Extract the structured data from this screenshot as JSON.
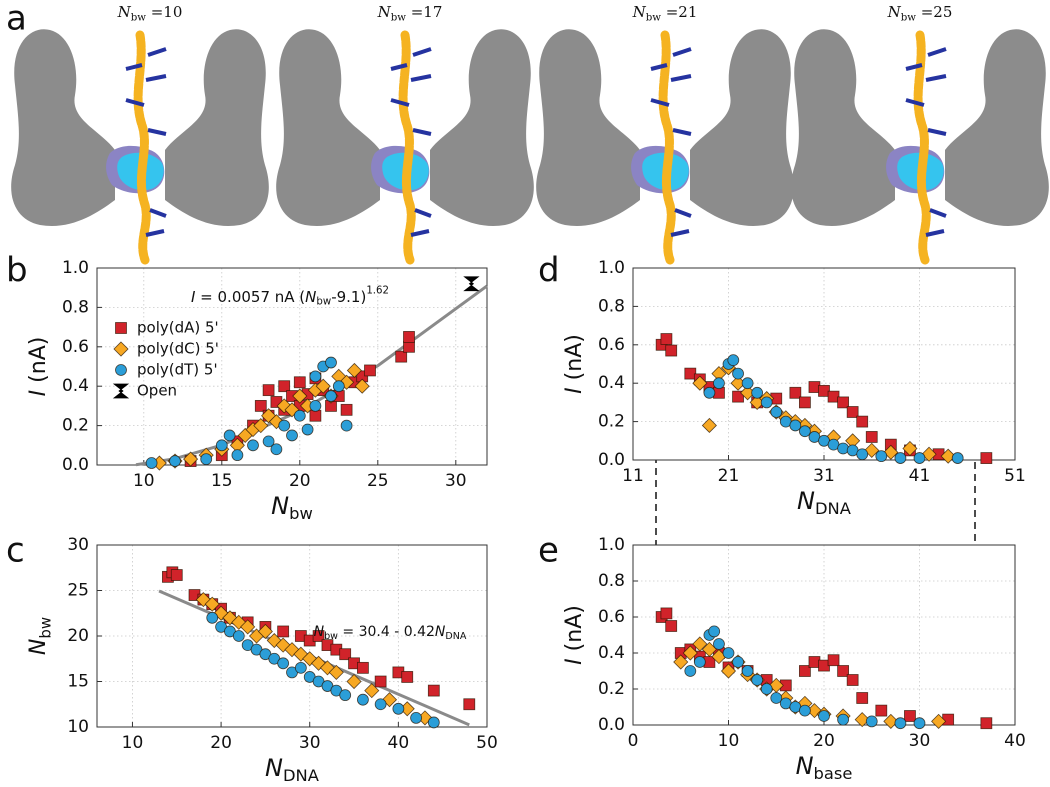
{
  "panel_a": {
    "label": "a",
    "titles": [
      [
        {
          "text": "N",
          "role": "italic"
        },
        {
          "text": "bw",
          "role": "sub"
        },
        {
          "text": " =10",
          "role": "normal"
        }
      ],
      [
        {
          "text": "N",
          "role": "italic"
        },
        {
          "text": "bw",
          "role": "sub"
        },
        {
          "text": " =17",
          "role": "normal"
        }
      ],
      [
        {
          "text": "N",
          "role": "italic"
        },
        {
          "text": "bw",
          "role": "sub"
        },
        {
          "text": " =21",
          "role": "normal"
        }
      ],
      [
        {
          "text": "N",
          "role": "italic"
        },
        {
          "text": "bw",
          "role": "sub"
        },
        {
          "text": " =25",
          "role": "normal"
        }
      ]
    ]
  },
  "chart_data": [
    {
      "type": "scatter",
      "panel_label": "b",
      "grid": true,
      "legend": "upper left",
      "xlabel": [
        {
          "text": "N",
          "role": "italic"
        },
        {
          "text": "bw",
          "role": "sub"
        }
      ],
      "ylabel": [
        {
          "text": "I",
          "role": "italic"
        },
        {
          "text": " (nA)",
          "role": "normal"
        }
      ],
      "xlim": [
        7,
        32
      ],
      "xticks": [
        10,
        15,
        20,
        25,
        30
      ],
      "ylim": [
        0,
        1
      ],
      "yticks": [
        {
          "value": 0,
          "label": "0.0"
        },
        0.2,
        0.4,
        0.6,
        0.8,
        {
          "value": 1,
          "label": "1.0"
        }
      ],
      "annotation": [
        {
          "text": "I",
          "role": "italic"
        },
        {
          "text": " = 0.0057 nA (",
          "role": "normal"
        },
        {
          "text": "N",
          "role": "italic"
        },
        {
          "text": "bw",
          "role": "sub"
        },
        {
          "text": "-9.1)",
          "role": "normal"
        },
        {
          "text": "1.62",
          "role": "sup"
        }
      ],
      "fit": {
        "color": "#8a8a8a",
        "x": [
          9.5,
          12,
          15,
          20,
          25,
          32
        ],
        "values": [
          0.0013,
          0.032,
          0.101,
          0.273,
          0.504,
          0.909
        ]
      },
      "series": [
        {
          "name": "poly(dA) 5'",
          "color": "#d1232a",
          "marker": "square",
          "x": [
            13,
            15,
            16,
            17,
            17.5,
            18,
            18,
            18.5,
            19,
            19,
            19.5,
            20,
            20,
            20.5,
            21,
            21,
            21.5,
            22,
            22.5,
            23,
            23.5,
            24,
            24.5,
            26.5,
            27,
            27
          ],
          "values": [
            0.02,
            0.05,
            0.12,
            0.2,
            0.3,
            0.25,
            0.38,
            0.32,
            0.4,
            0.28,
            0.35,
            0.42,
            0.3,
            0.36,
            0.44,
            0.25,
            0.38,
            0.3,
            0.35,
            0.28,
            0.42,
            0.45,
            0.48,
            0.55,
            0.6,
            0.65
          ]
        },
        {
          "name": "poly(dC) 5'",
          "color": "#f7a823",
          "marker": "diamond",
          "x": [
            11,
            12,
            13,
            14,
            15,
            16,
            16.5,
            17,
            17.5,
            18,
            18.5,
            19,
            19.5,
            20,
            20.5,
            21,
            21.5,
            22,
            22.5,
            23,
            23.5,
            24
          ],
          "values": [
            0.01,
            0.02,
            0.03,
            0.05,
            0.08,
            0.1,
            0.15,
            0.18,
            0.2,
            0.25,
            0.22,
            0.3,
            0.28,
            0.35,
            0.3,
            0.38,
            0.4,
            0.35,
            0.45,
            0.42,
            0.48,
            0.4
          ]
        },
        {
          "name": "poly(dT) 5'",
          "color": "#2b9ed8",
          "marker": "circle",
          "x": [
            10.5,
            12,
            14,
            15,
            15.5,
            16,
            17,
            18,
            18.5,
            19,
            19.5,
            20,
            20.5,
            21,
            21,
            21.5,
            22,
            22,
            22.5,
            23
          ],
          "values": [
            0.01,
            0.02,
            0.03,
            0.1,
            0.15,
            0.05,
            0.1,
            0.12,
            0.08,
            0.2,
            0.15,
            0.25,
            0.18,
            0.3,
            0.45,
            0.5,
            0.52,
            0.35,
            0.4,
            0.2
          ]
        },
        {
          "name": "Open",
          "color": "#000000",
          "marker": "bowtie",
          "x": [
            31
          ],
          "values": [
            0.92
          ]
        }
      ]
    },
    {
      "type": "scatter",
      "panel_label": "c",
      "grid": true,
      "xlabel": [
        {
          "text": "N",
          "role": "italic"
        },
        {
          "text": "DNA",
          "role": "sub"
        }
      ],
      "ylabel": [
        {
          "text": "N",
          "role": "italic"
        },
        {
          "text": "bw",
          "role": "sub"
        }
      ],
      "xlim": [
        6,
        50
      ],
      "xticks": [
        10,
        20,
        30,
        40,
        50
      ],
      "ylim": [
        10,
        30
      ],
      "yticks": [
        10,
        15,
        20,
        25,
        30
      ],
      "annotation": [
        {
          "text": "N",
          "role": "italic"
        },
        {
          "text": "bw",
          "role": "sub"
        },
        {
          "text": " = 30.4 - 0.42",
          "role": "normal"
        },
        {
          "text": "N",
          "role": "italic"
        },
        {
          "text": "DNA",
          "role": "sub"
        }
      ],
      "fit": {
        "color": "#8a8a8a",
        "x": [
          13,
          48
        ],
        "values": [
          24.94,
          10.24
        ]
      },
      "series": [
        {
          "color": "#d1232a",
          "marker": "square",
          "x": [
            14,
            14.5,
            15,
            17,
            18,
            19,
            20,
            21,
            23,
            25,
            27,
            29,
            30,
            31,
            32,
            33,
            34,
            35,
            36,
            38,
            40,
            41,
            44,
            48
          ],
          "values": [
            26.5,
            27,
            26.7,
            24.5,
            24,
            23.5,
            23,
            22,
            21.5,
            21,
            20.5,
            20,
            19.5,
            20,
            19,
            18.5,
            18,
            17,
            16.5,
            15,
            16,
            15.5,
            14,
            12.5
          ]
        },
        {
          "color": "#f7a823",
          "marker": "diamond",
          "x": [
            18,
            19,
            20,
            21,
            22,
            23,
            24,
            25,
            26,
            27,
            28,
            29,
            30,
            31,
            32,
            33,
            35,
            37,
            39,
            41,
            43
          ],
          "values": [
            24,
            23.5,
            22.5,
            22,
            21.5,
            21,
            20,
            20.5,
            19.5,
            19,
            18.5,
            18,
            17.5,
            17,
            16.5,
            16,
            15,
            14,
            13,
            12,
            11
          ]
        },
        {
          "color": "#2b9ed8",
          "marker": "circle",
          "x": [
            19,
            20,
            21,
            22,
            23,
            24,
            25,
            26,
            27,
            28,
            29,
            30,
            31,
            32,
            33,
            34,
            36,
            38,
            40,
            42,
            44
          ],
          "values": [
            22,
            21,
            20.5,
            20,
            19,
            18.5,
            18,
            17.5,
            17,
            16,
            16.5,
            15.5,
            15,
            14.5,
            14,
            13.5,
            13,
            12.5,
            12,
            11,
            10.5
          ]
        }
      ]
    },
    {
      "type": "scatter",
      "panel_label": "d",
      "grid": true,
      "xlabel": [
        {
          "text": "N",
          "role": "italic"
        },
        {
          "text": "DNA",
          "role": "sub"
        }
      ],
      "ylabel": [
        {
          "text": "I",
          "role": "italic"
        },
        {
          "text": " (nA)",
          "role": "normal"
        }
      ],
      "xlim": [
        11,
        51
      ],
      "xticks": [
        11,
        21,
        31,
        41,
        51
      ],
      "ylim": [
        0,
        1
      ],
      "yticks": [
        {
          "value": 0,
          "label": "0.0"
        },
        0.2,
        0.4,
        0.6,
        0.8,
        {
          "value": 1,
          "label": "1.0"
        }
      ],
      "series": [
        {
          "color": "#d1232a",
          "marker": "square",
          "x": [
            14,
            14.5,
            15,
            17,
            18,
            19,
            20,
            22,
            24,
            26,
            28,
            29,
            30,
            31,
            32,
            33,
            34,
            35,
            36,
            38,
            40,
            43,
            48
          ],
          "values": [
            0.6,
            0.63,
            0.57,
            0.45,
            0.42,
            0.38,
            0.35,
            0.33,
            0.3,
            0.32,
            0.35,
            0.3,
            0.38,
            0.36,
            0.33,
            0.3,
            0.25,
            0.2,
            0.12,
            0.08,
            0.05,
            0.03,
            0.01
          ]
        },
        {
          "color": "#f7a823",
          "marker": "diamond",
          "x": [
            18,
            19,
            20,
            21,
            22,
            23,
            24,
            25,
            26,
            27,
            28,
            29,
            30,
            32,
            34,
            36,
            38,
            40,
            42,
            44
          ],
          "values": [
            0.4,
            0.18,
            0.45,
            0.48,
            0.4,
            0.35,
            0.3,
            0.32,
            0.25,
            0.22,
            0.2,
            0.18,
            0.15,
            0.12,
            0.1,
            0.05,
            0.04,
            0.06,
            0.03,
            0.02
          ]
        },
        {
          "color": "#2b9ed8",
          "marker": "circle",
          "x": [
            19,
            20,
            21,
            21.5,
            22,
            23,
            24,
            25,
            26,
            27,
            28,
            29,
            30,
            31,
            32,
            33,
            34,
            35,
            37,
            39,
            41,
            45
          ],
          "values": [
            0.35,
            0.4,
            0.5,
            0.52,
            0.45,
            0.4,
            0.35,
            0.3,
            0.25,
            0.2,
            0.18,
            0.15,
            0.12,
            0.1,
            0.08,
            0.06,
            0.05,
            0.03,
            0.02,
            0.01,
            0.01,
            0.01
          ]
        }
      ]
    },
    {
      "type": "scatter",
      "panel_label": "e",
      "grid": true,
      "xlabel": [
        {
          "text": "N",
          "role": "italic"
        },
        {
          "text": "base",
          "role": "sub"
        }
      ],
      "ylabel": [
        {
          "text": "I",
          "role": "italic"
        },
        {
          "text": " (nA)",
          "role": "normal"
        }
      ],
      "xlim": [
        0,
        40
      ],
      "xticks": [
        0,
        10,
        20,
        30,
        40
      ],
      "ylim": [
        0,
        1
      ],
      "yticks": [
        {
          "value": 0,
          "label": "0.0"
        },
        0.2,
        0.4,
        0.6,
        0.8,
        {
          "value": 1,
          "label": "1.0"
        }
      ],
      "series": [
        {
          "color": "#d1232a",
          "marker": "square",
          "x": [
            3,
            3.5,
            4,
            5,
            6,
            7,
            8,
            9,
            10,
            12,
            14,
            16,
            18,
            19,
            20,
            21,
            22,
            23,
            24,
            26,
            29,
            33,
            37
          ],
          "values": [
            0.6,
            0.62,
            0.55,
            0.4,
            0.42,
            0.38,
            0.35,
            0.4,
            0.32,
            0.3,
            0.25,
            0.22,
            0.3,
            0.35,
            0.33,
            0.36,
            0.3,
            0.25,
            0.15,
            0.08,
            0.05,
            0.03,
            0.01
          ]
        },
        {
          "color": "#f7a823",
          "marker": "diamond",
          "x": [
            5,
            6,
            7,
            8,
            9,
            10,
            11,
            12,
            13,
            14,
            15,
            16,
            17,
            18,
            19,
            20,
            22,
            24,
            27,
            32
          ],
          "values": [
            0.35,
            0.4,
            0.45,
            0.42,
            0.38,
            0.3,
            0.35,
            0.28,
            0.25,
            0.2,
            0.22,
            0.15,
            0.1,
            0.12,
            0.08,
            0.06,
            0.05,
            0.03,
            0.02,
            0.02
          ]
        },
        {
          "color": "#2b9ed8",
          "marker": "circle",
          "x": [
            6,
            7,
            8,
            8.5,
            9,
            10,
            11,
            12,
            13,
            14,
            15,
            16,
            17,
            18,
            20,
            22,
            25,
            28,
            30
          ],
          "values": [
            0.3,
            0.35,
            0.5,
            0.52,
            0.45,
            0.4,
            0.35,
            0.3,
            0.25,
            0.2,
            0.15,
            0.12,
            0.1,
            0.08,
            0.05,
            0.03,
            0.02,
            0.01,
            0.01
          ]
        }
      ]
    }
  ]
}
